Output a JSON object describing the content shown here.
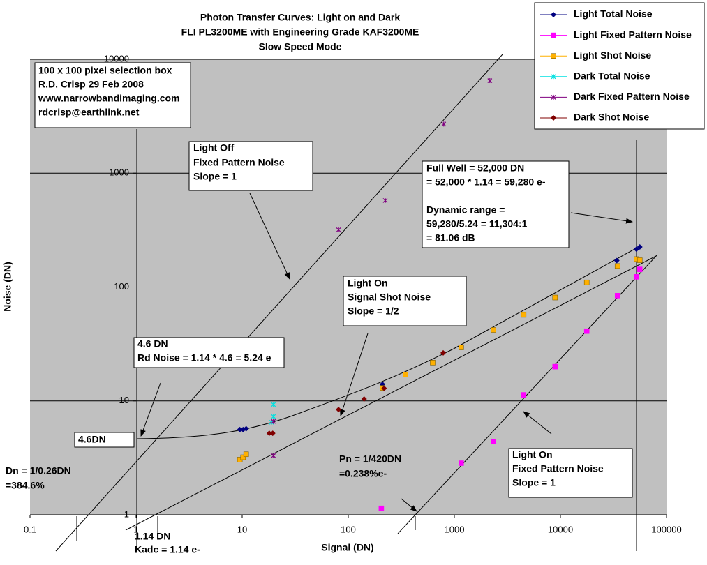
{
  "chart_data": {
    "type": "scatter",
    "title_lines": [
      "Photon Transfer Curves: Light on and Dark",
      "FLI PL3200ME with Engineering Grade KAF3200ME",
      "Slow Speed Mode"
    ],
    "x_label": "Signal (DN)",
    "y_label": "Noise (DN)",
    "log_x": true,
    "log_y": true,
    "grid": true,
    "xlim": [
      0.1,
      100000
    ],
    "ylim": [
      1,
      10000
    ],
    "xticks": [
      0.1,
      1,
      10,
      100,
      1000,
      10000,
      100000
    ],
    "yticks": [
      1,
      10,
      100,
      1000,
      10000
    ],
    "legend": "top-right",
    "series": [
      {
        "name": "Light Total Noise",
        "color": "#000080",
        "marker": "diamond",
        "x": [
          9.5,
          10.2,
          10.9,
          210,
          34000,
          52000,
          56000
        ],
        "values": [
          5.6,
          5.6,
          5.7,
          14,
          171,
          215,
          225
        ]
      },
      {
        "name": "Light Fixed Pattern Noise",
        "color": "#ff00ff",
        "marker": "square",
        "x": [
          205,
          1160,
          2330,
          4500,
          8900,
          17700,
          34500,
          52000,
          56000
        ],
        "values": [
          1.14,
          2.84,
          4.4,
          11.3,
          20,
          41,
          84,
          123,
          143
        ]
      },
      {
        "name": "Light Shot Noise",
        "color": "#ffb000",
        "marker": "square",
        "x": [
          9.5,
          10.2,
          10.9,
          210,
          347,
          625,
          1160,
          2330,
          4500,
          8900,
          17700,
          34500,
          52000,
          56000
        ],
        "values": [
          3.05,
          3.2,
          3.4,
          13,
          17,
          21.7,
          29.5,
          42,
          57,
          80.9,
          110,
          153,
          176,
          172
        ]
      },
      {
        "name": "Dark Total Noise",
        "color": "#00e0e0",
        "marker": "star",
        "x": [
          19.7,
          19.7,
          18.9
        ],
        "values": [
          9.3,
          7.3,
          6.5
        ]
      },
      {
        "name": "Dark Fixed Pattern Noise",
        "color": "#800080",
        "marker": "star",
        "x": [
          19.7,
          19.7,
          81,
          223,
          794,
          2160
        ],
        "values": [
          3.3,
          6.6,
          318,
          575,
          2700,
          6500
        ]
      },
      {
        "name": "Dark Shot Noise",
        "color": "#800000",
        "marker": "diamond",
        "x": [
          18,
          19.4,
          81,
          141,
          218,
          785
        ],
        "values": [
          5.2,
          5.2,
          8.4,
          10.4,
          12.9,
          26.4
        ]
      }
    ],
    "annotations": [
      {
        "lines": [
          "100 x 100 pixel selection box",
          "R.D. Crisp 29 Feb 2008",
          "www.narrowbandimaging.com",
          "rdcrisp@earthlink.net"
        ]
      },
      {
        "lines": [
          "Light Off",
          "Fixed Pattern Noise",
          "Slope = 1"
        ]
      },
      {
        "lines": [
          "Full Well = 52,000 DN",
          " = 52,000 * 1.14 = 59,280 e-",
          "Dynamic range =",
          "59,280/5.24 = 11,304:1",
          "= 81.06 dB"
        ]
      },
      {
        "lines": [
          "Light On",
          "Signal Shot Noise",
          "Slope = 1/2"
        ]
      },
      {
        "lines": [
          "4.6 DN",
          "Rd Noise = 1.14 * 4.6 = 5.24 e"
        ]
      },
      {
        "lines": [
          "4.6DN"
        ]
      },
      {
        "lines": [
          "Dn = 1/0.26DN",
          "=384.6%"
        ]
      },
      {
        "lines": [
          "Pn = 1/420DN",
          "=0.238%e-"
        ]
      },
      {
        "lines": [
          "Light On",
          "Fixed Pattern Noise",
          "Slope = 1"
        ]
      },
      {
        "lines": [
          "1.14 DN",
          "Kadc = 1.14 e-"
        ]
      }
    ]
  }
}
